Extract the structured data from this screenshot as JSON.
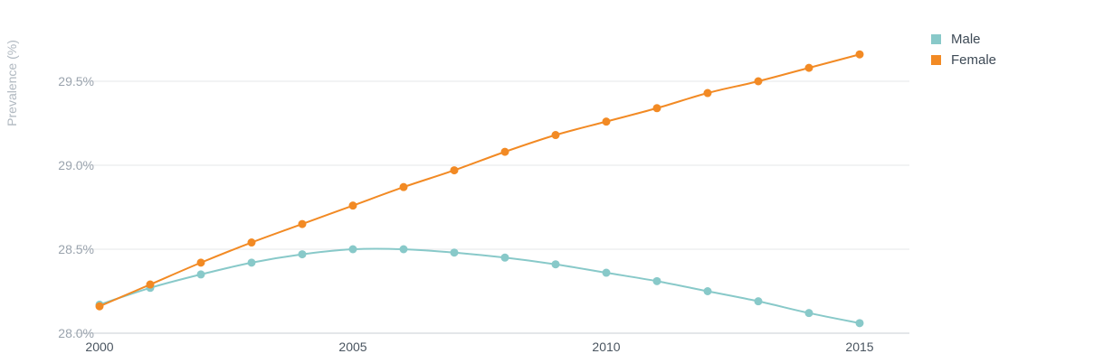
{
  "chart_data": {
    "type": "line",
    "title": "",
    "xlabel": "",
    "ylabel": "Prevalence (%)",
    "x": [
      2000,
      2001,
      2002,
      2003,
      2004,
      2005,
      2006,
      2007,
      2008,
      2009,
      2010,
      2011,
      2012,
      2013,
      2014,
      2015
    ],
    "x_ticks": [
      2000,
      2005,
      2010,
      2015
    ],
    "y_ticks": [
      28.0,
      28.5,
      29.0,
      29.5
    ],
    "y_tick_labels": [
      "28.0%",
      "28.5%",
      "29.0%",
      "29.5%"
    ],
    "xlim": [
      2000,
      2016
    ],
    "ylim": [
      28.0,
      29.85
    ],
    "grid": true,
    "legend_position": "top-right",
    "series": [
      {
        "name": "Male",
        "color": "#88c9c9",
        "values": [
          28.17,
          28.27,
          28.35,
          28.42,
          28.47,
          28.5,
          28.5,
          28.48,
          28.45,
          28.41,
          28.36,
          28.31,
          28.25,
          28.19,
          28.12,
          28.06
        ]
      },
      {
        "name": "Female",
        "color": "#f28a24",
        "values": [
          28.16,
          28.29,
          28.42,
          28.54,
          28.65,
          28.76,
          28.87,
          28.97,
          29.08,
          29.18,
          29.26,
          29.34,
          29.43,
          29.5,
          29.58,
          29.66
        ]
      }
    ]
  }
}
